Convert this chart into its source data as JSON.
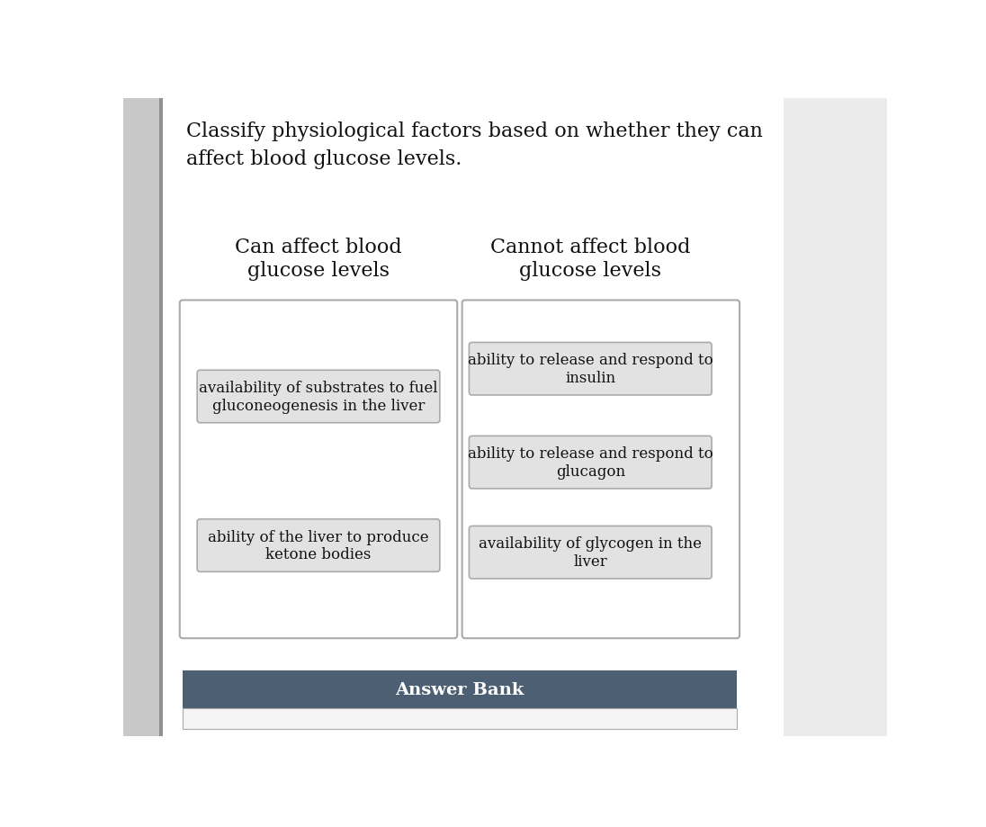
{
  "title_line1": "Classify physiological factors based on whether they can",
  "title_line2": "affect blood glucose levels.",
  "col1_header": "Can affect blood\nglucose levels",
  "col2_header": "Cannot affect blood\nglucose levels",
  "col1_items": [
    "availability of substrates to fuel\ngluconeogenesis in the liver",
    "ability of the liver to produce\nketone bodies"
  ],
  "col2_items": [
    "ability to release and respond to\ninsulin",
    "ability to release and respond to\nglucagon",
    "availability of glycogen in the\nliver"
  ],
  "answer_bank_label": "Answer Bank",
  "page_bg": "#ffffff",
  "content_bg": "#f0f0f0",
  "item_box_bg": "#e2e2e2",
  "item_box_edge": "#aaaaaa",
  "outer_box_bg": "#ffffff",
  "outer_box_edge": "#aaaaaa",
  "answer_bank_bg": "#4d5f72",
  "answer_bank_text": "#ffffff",
  "left_strip_bg": "#c8c8c8",
  "left_border_color": "#909090",
  "title_fontsize": 16,
  "header_fontsize": 16,
  "item_fontsize": 12,
  "answer_bank_fontsize": 14
}
